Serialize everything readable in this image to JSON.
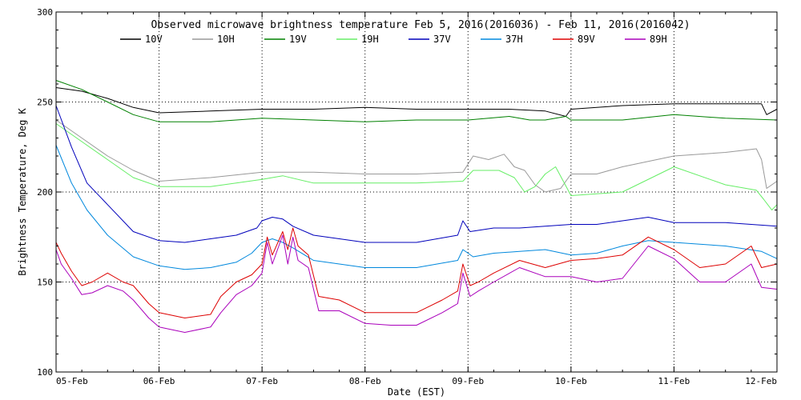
{
  "chart_data": {
    "type": "line",
    "title": "Observed microwave brightness temperature Feb  5, 2016(2016036) - Feb 11, 2016(2016042)",
    "xlabel": "Date (EST)",
    "ylabel": "Brightness Temperature, Deg K",
    "x_unit": "days from 05-Feb-2016 00:00 EST",
    "xlim": [
      0,
      7
    ],
    "ylim": [
      100,
      300
    ],
    "x_ticks": [
      0,
      1,
      2,
      3,
      4,
      5,
      6,
      7
    ],
    "x_tick_labels": [
      "05-Feb",
      "06-Feb",
      "07-Feb",
      "08-Feb",
      "09-Feb",
      "10-Feb",
      "11-Feb",
      "12-Feb"
    ],
    "y_ticks": [
      100,
      150,
      200,
      250,
      300
    ],
    "y_tick_labels": [
      "100",
      "150",
      "200",
      "250",
      "300"
    ],
    "grid": {
      "vertical": [
        1,
        2,
        3,
        4,
        5,
        6
      ],
      "horizontal": [
        150,
        200,
        250
      ]
    },
    "legend_position": "top",
    "series": [
      {
        "name": "10V",
        "color": "#000000",
        "points": [
          [
            0,
            258
          ],
          [
            0.25,
            256
          ],
          [
            0.5,
            252
          ],
          [
            0.75,
            247
          ],
          [
            1,
            244
          ],
          [
            1.5,
            245
          ],
          [
            2,
            246
          ],
          [
            2.5,
            246
          ],
          [
            3,
            247
          ],
          [
            3.5,
            246
          ],
          [
            4,
            246
          ],
          [
            4.4,
            246
          ],
          [
            4.75,
            245
          ],
          [
            4.95,
            242
          ],
          [
            5,
            246
          ],
          [
            5.5,
            248
          ],
          [
            6,
            249
          ],
          [
            6.5,
            249
          ],
          [
            6.85,
            249
          ],
          [
            6.9,
            243
          ],
          [
            7,
            246
          ]
        ]
      },
      {
        "name": "10H",
        "color": "#999999",
        "points": [
          [
            0,
            240
          ],
          [
            0.25,
            230
          ],
          [
            0.5,
            220
          ],
          [
            0.75,
            212
          ],
          [
            1,
            206
          ],
          [
            1.5,
            208
          ],
          [
            2,
            211
          ],
          [
            2.5,
            211
          ],
          [
            3,
            210
          ],
          [
            3.5,
            210
          ],
          [
            3.95,
            211
          ],
          [
            4.05,
            220
          ],
          [
            4.2,
            218
          ],
          [
            4.35,
            221
          ],
          [
            4.45,
            214
          ],
          [
            4.55,
            212
          ],
          [
            4.65,
            204
          ],
          [
            4.75,
            200
          ],
          [
            4.9,
            202
          ],
          [
            5,
            210
          ],
          [
            5.25,
            210
          ],
          [
            5.5,
            214
          ],
          [
            6,
            220
          ],
          [
            6.5,
            222
          ],
          [
            6.8,
            224
          ],
          [
            6.85,
            218
          ],
          [
            6.9,
            202
          ],
          [
            7,
            206
          ]
        ]
      },
      {
        "name": "19V",
        "color": "#008000",
        "points": [
          [
            0,
            262
          ],
          [
            0.25,
            257
          ],
          [
            0.5,
            250
          ],
          [
            0.75,
            243
          ],
          [
            1,
            239
          ],
          [
            1.5,
            239
          ],
          [
            2,
            241
          ],
          [
            2.5,
            240
          ],
          [
            3,
            239
          ],
          [
            3.5,
            240
          ],
          [
            4,
            240
          ],
          [
            4.4,
            242
          ],
          [
            4.5,
            241
          ],
          [
            4.6,
            240
          ],
          [
            4.75,
            240
          ],
          [
            4.95,
            242
          ],
          [
            5,
            240
          ],
          [
            5.5,
            240
          ],
          [
            6,
            243
          ],
          [
            6.5,
            241
          ],
          [
            7,
            240
          ]
        ]
      },
      {
        "name": "19H",
        "color": "#66ee66",
        "points": [
          [
            0,
            238
          ],
          [
            0.25,
            228
          ],
          [
            0.5,
            218
          ],
          [
            0.75,
            208
          ],
          [
            1,
            203
          ],
          [
            1.5,
            203
          ],
          [
            2,
            207
          ],
          [
            2.2,
            209
          ],
          [
            2.5,
            205
          ],
          [
            3,
            205
          ],
          [
            3.5,
            205
          ],
          [
            3.95,
            206
          ],
          [
            4.05,
            212
          ],
          [
            4.3,
            212
          ],
          [
            4.45,
            208
          ],
          [
            4.55,
            200
          ],
          [
            4.65,
            203
          ],
          [
            4.75,
            210
          ],
          [
            4.85,
            214
          ],
          [
            5,
            198
          ],
          [
            5.5,
            200
          ],
          [
            6,
            214
          ],
          [
            6.5,
            204
          ],
          [
            6.8,
            201
          ],
          [
            6.87,
            196
          ],
          [
            6.95,
            190
          ],
          [
            7,
            193
          ]
        ]
      },
      {
        "name": "37V",
        "color": "#0000bb",
        "points": [
          [
            0,
            248
          ],
          [
            0.15,
            225
          ],
          [
            0.3,
            205
          ],
          [
            0.5,
            193
          ],
          [
            0.75,
            178
          ],
          [
            1,
            173
          ],
          [
            1.25,
            172
          ],
          [
            1.5,
            174
          ],
          [
            1.75,
            176
          ],
          [
            1.95,
            180
          ],
          [
            2,
            184
          ],
          [
            2.1,
            186
          ],
          [
            2.2,
            185
          ],
          [
            2.3,
            181
          ],
          [
            2.5,
            176
          ],
          [
            2.75,
            174
          ],
          [
            3,
            172
          ],
          [
            3.5,
            172
          ],
          [
            3.9,
            176
          ],
          [
            3.95,
            184
          ],
          [
            4.02,
            178
          ],
          [
            4.25,
            180
          ],
          [
            4.5,
            180
          ],
          [
            4.75,
            181
          ],
          [
            5,
            182
          ],
          [
            5.25,
            182
          ],
          [
            5.5,
            184
          ],
          [
            5.75,
            186
          ],
          [
            6,
            183
          ],
          [
            6.5,
            183
          ],
          [
            7,
            181
          ]
        ]
      },
      {
        "name": "37H",
        "color": "#0088dd",
        "points": [
          [
            0,
            226
          ],
          [
            0.15,
            205
          ],
          [
            0.3,
            190
          ],
          [
            0.5,
            176
          ],
          [
            0.75,
            164
          ],
          [
            1,
            159
          ],
          [
            1.25,
            157
          ],
          [
            1.5,
            158
          ],
          [
            1.75,
            161
          ],
          [
            1.9,
            166
          ],
          [
            2,
            172
          ],
          [
            2.1,
            174
          ],
          [
            2.2,
            172
          ],
          [
            2.3,
            169
          ],
          [
            2.5,
            162
          ],
          [
            2.75,
            160
          ],
          [
            3,
            158
          ],
          [
            3.5,
            158
          ],
          [
            3.9,
            162
          ],
          [
            3.95,
            168
          ],
          [
            4.05,
            164
          ],
          [
            4.25,
            166
          ],
          [
            4.5,
            167
          ],
          [
            4.75,
            168
          ],
          [
            5,
            165
          ],
          [
            5.25,
            166
          ],
          [
            5.5,
            170
          ],
          [
            5.75,
            173
          ],
          [
            6,
            172
          ],
          [
            6.5,
            170
          ],
          [
            6.85,
            167
          ],
          [
            7,
            163
          ]
        ]
      },
      {
        "name": "89V",
        "color": "#dd0000",
        "points": [
          [
            0,
            172
          ],
          [
            0.05,
            166
          ],
          [
            0.15,
            156
          ],
          [
            0.25,
            148
          ],
          [
            0.35,
            150
          ],
          [
            0.5,
            155
          ],
          [
            0.65,
            150
          ],
          [
            0.75,
            148
          ],
          [
            0.9,
            138
          ],
          [
            1,
            133
          ],
          [
            1.25,
            130
          ],
          [
            1.5,
            132
          ],
          [
            1.6,
            142
          ],
          [
            1.75,
            150
          ],
          [
            1.9,
            154
          ],
          [
            2,
            160
          ],
          [
            2.05,
            175
          ],
          [
            2.1,
            165
          ],
          [
            2.2,
            178
          ],
          [
            2.25,
            168
          ],
          [
            2.3,
            180
          ],
          [
            2.35,
            170
          ],
          [
            2.45,
            165
          ],
          [
            2.55,
            142
          ],
          [
            2.75,
            140
          ],
          [
            3,
            133
          ],
          [
            3.25,
            133
          ],
          [
            3.5,
            133
          ],
          [
            3.75,
            140
          ],
          [
            3.9,
            145
          ],
          [
            3.95,
            160
          ],
          [
            4.02,
            148
          ],
          [
            4.1,
            150
          ],
          [
            4.25,
            155
          ],
          [
            4.5,
            162
          ],
          [
            4.75,
            158
          ],
          [
            5,
            162
          ],
          [
            5.25,
            163
          ],
          [
            5.5,
            165
          ],
          [
            5.75,
            175
          ],
          [
            6,
            168
          ],
          [
            6.25,
            158
          ],
          [
            6.5,
            160
          ],
          [
            6.75,
            170
          ],
          [
            6.85,
            158
          ],
          [
            7,
            160
          ]
        ]
      },
      {
        "name": "89H",
        "color": "#aa00bb",
        "points": [
          [
            0,
            168
          ],
          [
            0.05,
            160
          ],
          [
            0.15,
            152
          ],
          [
            0.25,
            143
          ],
          [
            0.35,
            144
          ],
          [
            0.5,
            148
          ],
          [
            0.65,
            145
          ],
          [
            0.75,
            140
          ],
          [
            0.9,
            130
          ],
          [
            1,
            125
          ],
          [
            1.25,
            122
          ],
          [
            1.5,
            125
          ],
          [
            1.6,
            133
          ],
          [
            1.75,
            143
          ],
          [
            1.9,
            148
          ],
          [
            2,
            155
          ],
          [
            2.05,
            172
          ],
          [
            2.1,
            160
          ],
          [
            2.2,
            176
          ],
          [
            2.25,
            160
          ],
          [
            2.3,
            175
          ],
          [
            2.35,
            162
          ],
          [
            2.45,
            158
          ],
          [
            2.55,
            134
          ],
          [
            2.75,
            134
          ],
          [
            3,
            127
          ],
          [
            3.25,
            126
          ],
          [
            3.5,
            126
          ],
          [
            3.75,
            133
          ],
          [
            3.9,
            138
          ],
          [
            3.95,
            155
          ],
          [
            4.02,
            142
          ],
          [
            4.1,
            145
          ],
          [
            4.25,
            150
          ],
          [
            4.5,
            158
          ],
          [
            4.75,
            153
          ],
          [
            5,
            153
          ],
          [
            5.25,
            150
          ],
          [
            5.5,
            152
          ],
          [
            5.75,
            170
          ],
          [
            6,
            163
          ],
          [
            6.25,
            150
          ],
          [
            6.5,
            150
          ],
          [
            6.75,
            160
          ],
          [
            6.85,
            147
          ],
          [
            7,
            146
          ]
        ]
      }
    ]
  }
}
